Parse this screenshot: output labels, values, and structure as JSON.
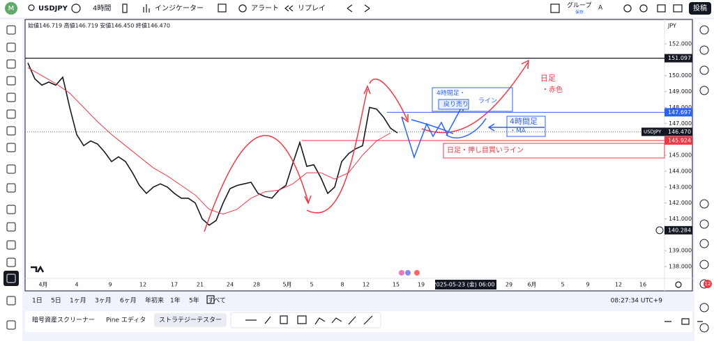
{
  "toolbar": {
    "avatar": "M",
    "symbol": "USDJPY",
    "interval": "4時間",
    "indicators": "インジケーター",
    "alert": "アラート",
    "replay": "リプレイ",
    "group": "グループ",
    "save": "保存",
    "font": "A",
    "post": "投稿"
  },
  "chart": {
    "ohlc": "始値146.719 高値146.719 安値146.450 終値146.470",
    "currency": "JPY",
    "ylim": [
      137.26,
      153.53
    ],
    "yticks": [
      {
        "value": 152,
        "label": "152.000"
      },
      {
        "value": 150,
        "label": "150.000"
      },
      {
        "value": 149,
        "label": "149.000"
      },
      {
        "value": 148,
        "label": "148.000"
      },
      {
        "value": 147,
        "label": "147.000"
      },
      {
        "value": 145,
        "label": "145.000"
      },
      {
        "value": 144,
        "label": "144.000"
      },
      {
        "value": 143,
        "label": "143.000"
      },
      {
        "value": 142,
        "label": "142.000"
      },
      {
        "value": 141,
        "label": "141.000"
      },
      {
        "value": 139,
        "label": "139.000"
      },
      {
        "value": 138,
        "label": "138.000"
      }
    ],
    "price_tags": [
      {
        "value": 151.097,
        "label": "151.097",
        "color": "#131722"
      },
      {
        "value": 147.697,
        "label": "147.697",
        "color": "#2962ff"
      },
      {
        "value": 146.47,
        "label": "146.470",
        "color": "#131722"
      },
      {
        "value": 145.924,
        "label": "145.924",
        "color": "#f23645"
      },
      {
        "value": 140.284,
        "label": "140.284",
        "color": "#131722"
      }
    ],
    "symbol_tag": "USDJPY",
    "xticks": [
      "4月",
      "4",
      "9",
      "12",
      "17",
      "21",
      "24",
      "28",
      "5月",
      "5",
      "8",
      "12",
      "15",
      "19",
      "2025-05-23 (金)  06:00",
      "29",
      "6月",
      "5",
      "9",
      "12",
      "16"
    ],
    "closes": [
      150.8,
      149.8,
      149.4,
      149.6,
      149.4,
      149.9,
      148.0,
      146.3,
      145.6,
      145.9,
      145.7,
      145.2,
      144.6,
      144.9,
      144.6,
      143.9,
      143.1,
      142.6,
      143.0,
      143.2,
      143.0,
      142.6,
      142.3,
      142.3,
      142.0,
      141.0,
      140.6,
      140.9,
      142.0,
      142.9,
      143.1,
      143.2,
      143.3,
      142.6,
      142.4,
      142.3,
      142.8,
      143.1,
      144.5,
      145.8,
      144.3,
      144.4,
      143.6,
      142.6,
      143.0,
      144.6,
      145.1,
      145.4,
      145.6,
      148.0,
      147.9,
      147.4,
      146.7,
      146.4
    ],
    "ma": [
      150.5,
      150.0,
      149.5,
      148.9,
      148.0,
      147.1,
      146.3,
      145.6,
      144.9,
      144.2,
      143.7,
      143.1,
      142.5,
      141.6,
      141.3,
      141.6,
      142.3,
      142.7,
      142.8,
      143.2,
      143.9,
      143.9,
      143.5,
      143.9,
      145.0,
      145.9,
      146.4
    ],
    "annotations": {
      "h4_title": "4時間足・",
      "h4_sell": "戻り売り",
      "h4_line": "ライン",
      "ma_title": "4時間足",
      "ma_sub": "・MA",
      "daily_title": "日足",
      "daily_sub": "・赤色",
      "daily_line": "日足・押し目買いライン"
    }
  },
  "bottom_bar": {
    "ranges": [
      "1日",
      "5日",
      "1ヶ月",
      "3ヶ月",
      "6ヶ月",
      "年初来",
      "1年",
      "5年",
      "すべて"
    ],
    "clock": "08:27:34 UTC+9"
  },
  "tabs": [
    "暗号資産スクリーナー",
    "Pine エディタ",
    "ストラテジーテスター"
  ],
  "notification_count": "12"
}
